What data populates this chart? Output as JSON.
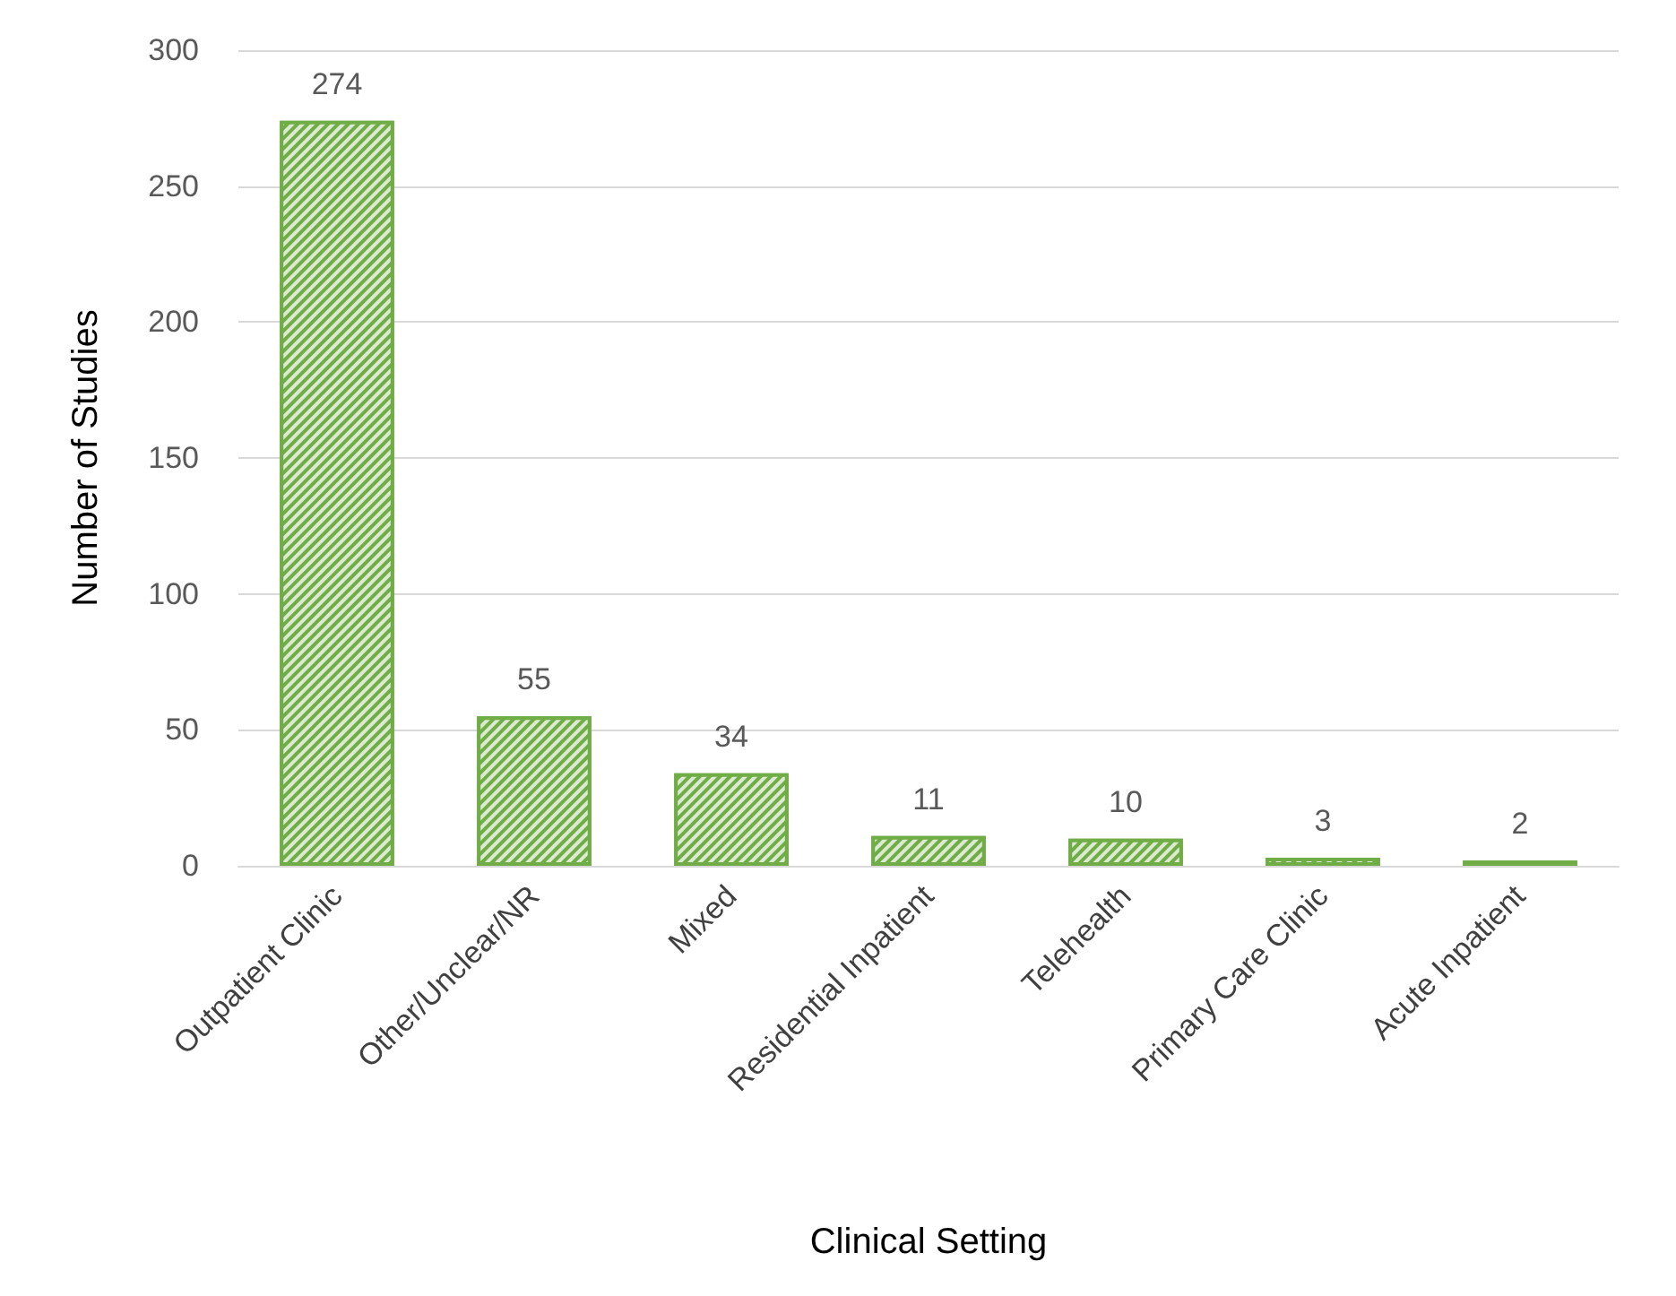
{
  "chart_data": {
    "type": "bar",
    "xlabel": "Clinical Setting",
    "ylabel": "Number of Studies",
    "categories": [
      "Outpatient Clinic",
      "Other/Unclear/NR",
      "Mixed",
      "Residential Inpatient",
      "Telehealth",
      "Primary Care Clinic",
      "Acute Inpatient"
    ],
    "values": [
      274,
      55,
      34,
      11,
      10,
      3,
      2
    ],
    "color": "#70ad47",
    "ylim": [
      0,
      300
    ],
    "yticks": [
      0,
      50,
      100,
      150,
      200,
      250,
      300
    ],
    "grid": "y",
    "data_labels": true
  }
}
